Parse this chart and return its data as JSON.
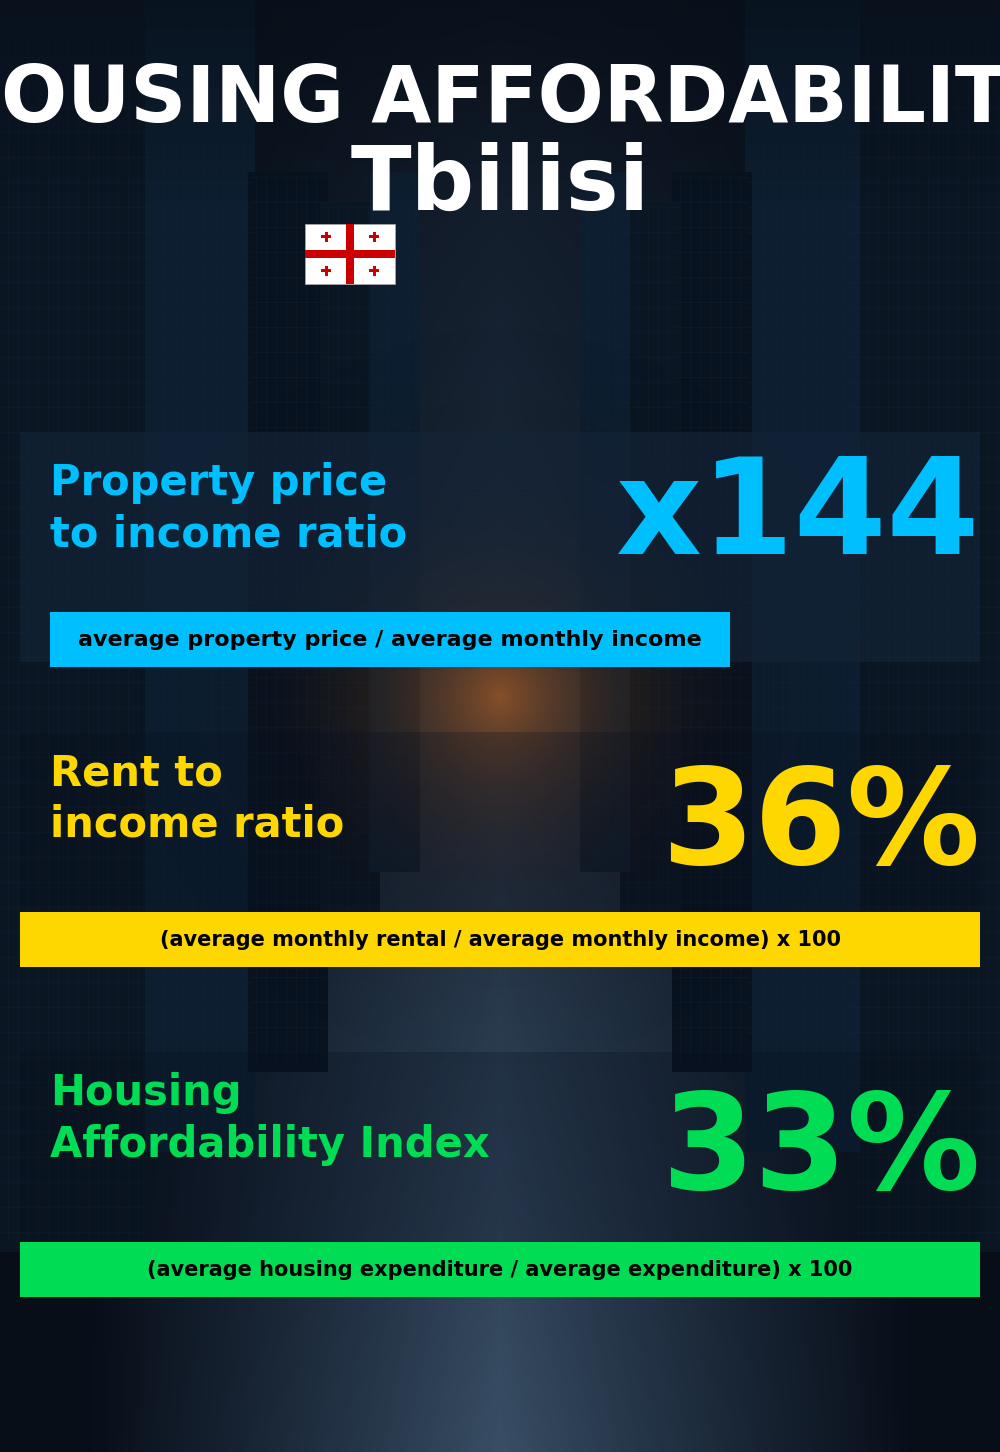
{
  "title_line1": "HOUSING AFFORDABILITY",
  "title_line2": "Tbilisi",
  "section1_label": "Property price\nto income ratio",
  "section1_value": "x144",
  "section1_label_color": "#00bfff",
  "section1_value_color": "#00bfff",
  "section1_banner_text": "average property price / average monthly income",
  "section1_banner_bg": "#00bfff",
  "section2_label": "Rent to\nincome ratio",
  "section2_value": "36%",
  "section2_label_color": "#FFD700",
  "section2_value_color": "#FFD700",
  "section2_banner_text": "(average monthly rental / average monthly income) x 100",
  "section2_banner_bg": "#FFD700",
  "section3_label": "Housing\nAffordability Index",
  "section3_value": "33%",
  "section3_label_color": "#00dd55",
  "section3_value_color": "#00dd55",
  "section3_banner_text": "(average housing expenditure / average expenditure) x 100",
  "section3_banner_bg": "#00dd55",
  "bg_dark": "#080e18",
  "bg_mid": "#0d1a2e",
  "title_color": "#ffffff",
  "banner_text_color": "#000000",
  "flag_white": "#ffffff",
  "flag_red": "#cc0000"
}
